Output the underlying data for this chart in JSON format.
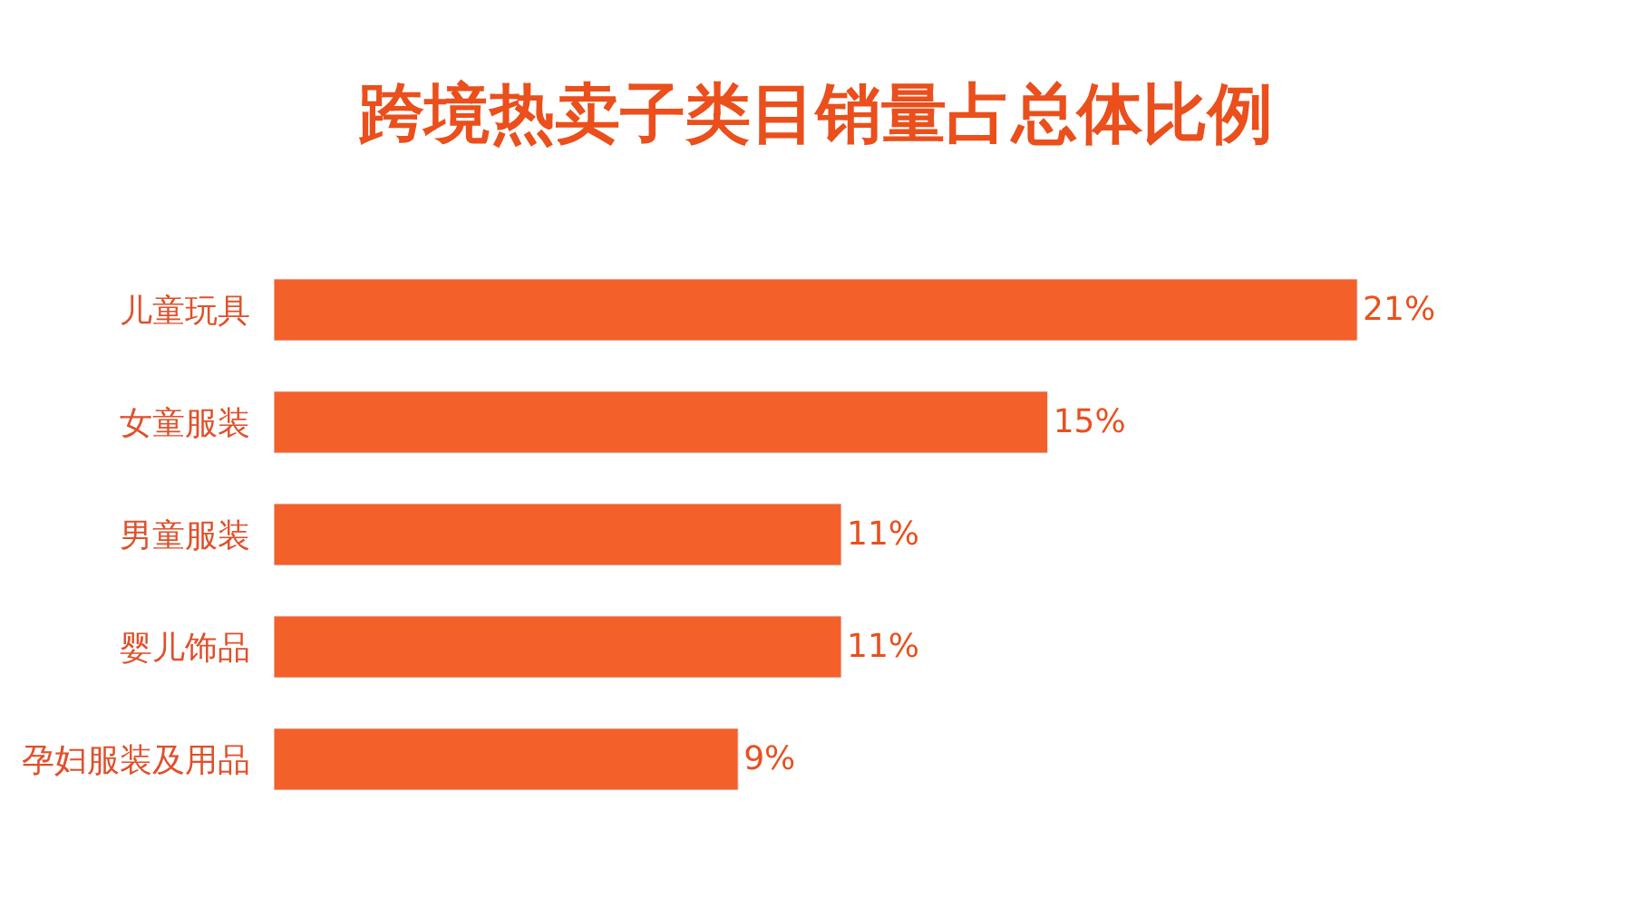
{
  "chart_data": {
    "type": "bar",
    "orientation": "horizontal",
    "title": "跨境热卖子类目销量占总体比例",
    "categories": [
      "儿童玩具",
      "女童服装",
      "男童服装",
      "婴儿饰品",
      "孕妇服装及用品"
    ],
    "values": [
      21,
      15,
      11,
      11,
      9
    ],
    "value_labels": [
      "21%",
      "15%",
      "11%",
      "11%",
      "9%"
    ],
    "color": "#f4602a",
    "tick_labels": "y"
  }
}
